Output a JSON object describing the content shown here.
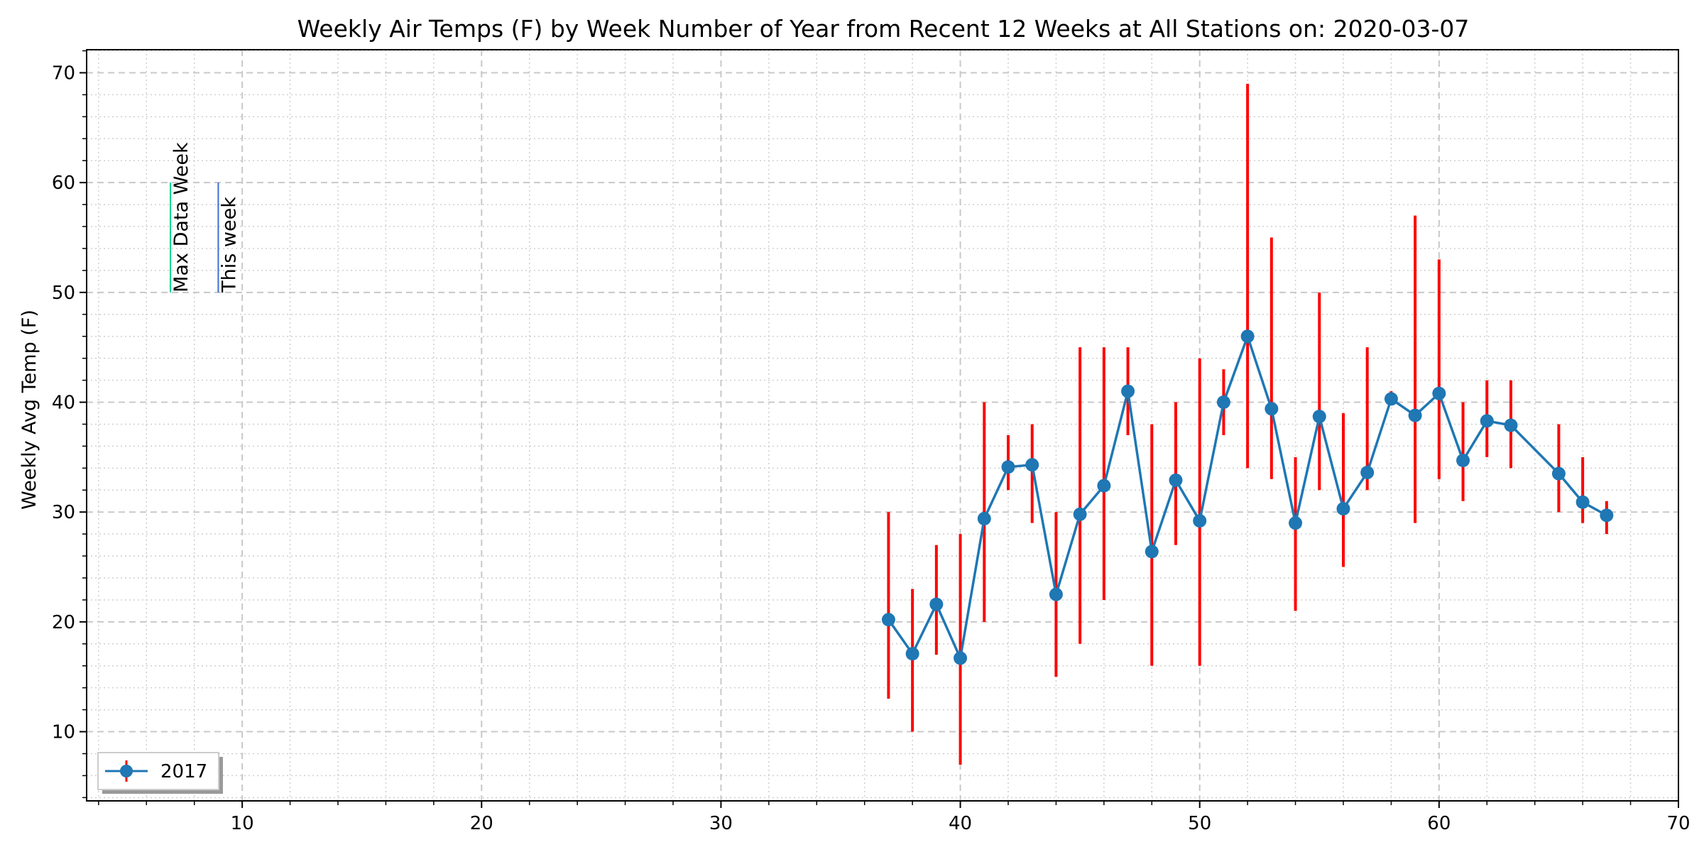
{
  "chart_data": {
    "type": "line",
    "title": "Weekly Air Temps (F) by Week Number of Year from Recent 12 Weeks at All Stations on: 2020-03-07",
    "xlabel": "",
    "ylabel": "Weekly Avg Temp (F)",
    "xlim": [
      3.5,
      70
    ],
    "ylim": [
      3.7,
      72.1
    ],
    "x_ticks": [
      10,
      20,
      30,
      40,
      50,
      60,
      70
    ],
    "y_ticks": [
      10,
      20,
      30,
      40,
      50,
      60,
      70
    ],
    "grid": true,
    "legend": {
      "position": "lower-left"
    },
    "series": [
      {
        "name": "2017",
        "color": "#1f77b4",
        "errorbar_color": "#ff0000",
        "x": [
          37,
          38,
          39,
          40,
          41,
          42,
          43,
          44,
          45,
          46,
          47,
          48,
          49,
          50,
          51,
          52,
          53,
          54,
          55,
          56,
          57,
          58,
          59,
          60,
          61,
          62,
          63,
          65,
          66,
          67
        ],
        "y": [
          20.2,
          17.1,
          21.6,
          16.7,
          29.4,
          34.1,
          34.3,
          22.5,
          29.8,
          32.4,
          41.0,
          26.4,
          32.9,
          29.2,
          40.0,
          46.0,
          39.4,
          29.0,
          38.7,
          30.3,
          33.6,
          40.3,
          38.8,
          40.8,
          34.7,
          38.3,
          37.9,
          33.5,
          30.9,
          29.7
        ],
        "ymin": [
          13,
          10,
          17,
          7,
          20,
          32,
          29,
          15,
          18,
          22,
          37,
          16,
          27,
          16,
          37,
          34,
          33,
          21,
          32,
          25,
          32,
          40,
          29,
          33,
          31,
          35,
          34,
          30,
          29,
          28
        ],
        "ymax": [
          30,
          23,
          27,
          28,
          40,
          37,
          38,
          30,
          45,
          45,
          45,
          38,
          40,
          44,
          43,
          69,
          55,
          35,
          50,
          39,
          45,
          41,
          57,
          53,
          40,
          42,
          42,
          38,
          35,
          31
        ]
      }
    ],
    "vlines": [
      {
        "label": "Max Data Week",
        "x": 7.0,
        "ymin": 50,
        "ymax": 60,
        "color": "#00d68f"
      },
      {
        "label": "This week",
        "x": 9.0,
        "ymin": 50,
        "ymax": 60,
        "color": "#3b6fd6"
      }
    ]
  }
}
